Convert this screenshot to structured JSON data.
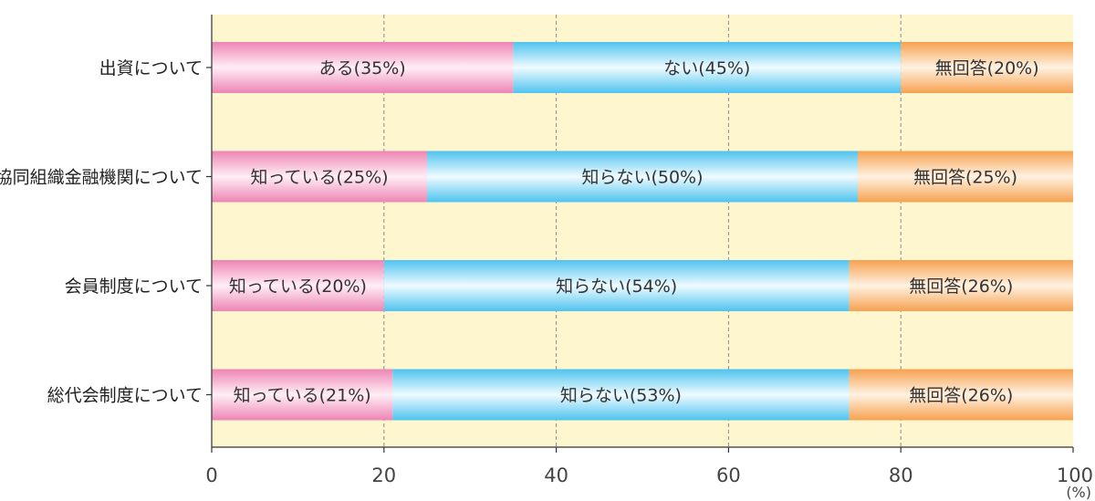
{
  "chart_data": {
    "type": "bar",
    "orientation": "horizontal",
    "stacked": true,
    "categories": [
      "出資について",
      "協同組織金融機関について",
      "会員制度について",
      "総代会制度について"
    ],
    "series": [
      {
        "values": [
          35,
          25,
          20,
          21
        ],
        "labels": [
          "ある(35%)",
          "知っている(25%)",
          "知っている(20%)",
          "知っている(21%)"
        ]
      },
      {
        "values": [
          45,
          50,
          54,
          53
        ],
        "labels": [
          "ない(45%)",
          "知らない(50%)",
          "知らない(54%)",
          "知らない(53%)"
        ]
      },
      {
        "values": [
          20,
          25,
          26,
          26
        ],
        "labels": [
          "無回答(20%)",
          "無回答(25%)",
          "無回答(26%)",
          "無回答(26%)"
        ]
      }
    ],
    "xlim": [
      0,
      100
    ],
    "xticks": [
      "0",
      "20",
      "40",
      "60",
      "80",
      "100"
    ],
    "x_unit": "(%)",
    "grid": "vertical dashed",
    "colors": {
      "plot_background": "#fdf6cf",
      "series": [
        "#ee85b4",
        "#4fc3ef",
        "#f6a150"
      ],
      "series_highlight": [
        "#ffeef6",
        "#effbff",
        "#fff2e2"
      ]
    }
  }
}
